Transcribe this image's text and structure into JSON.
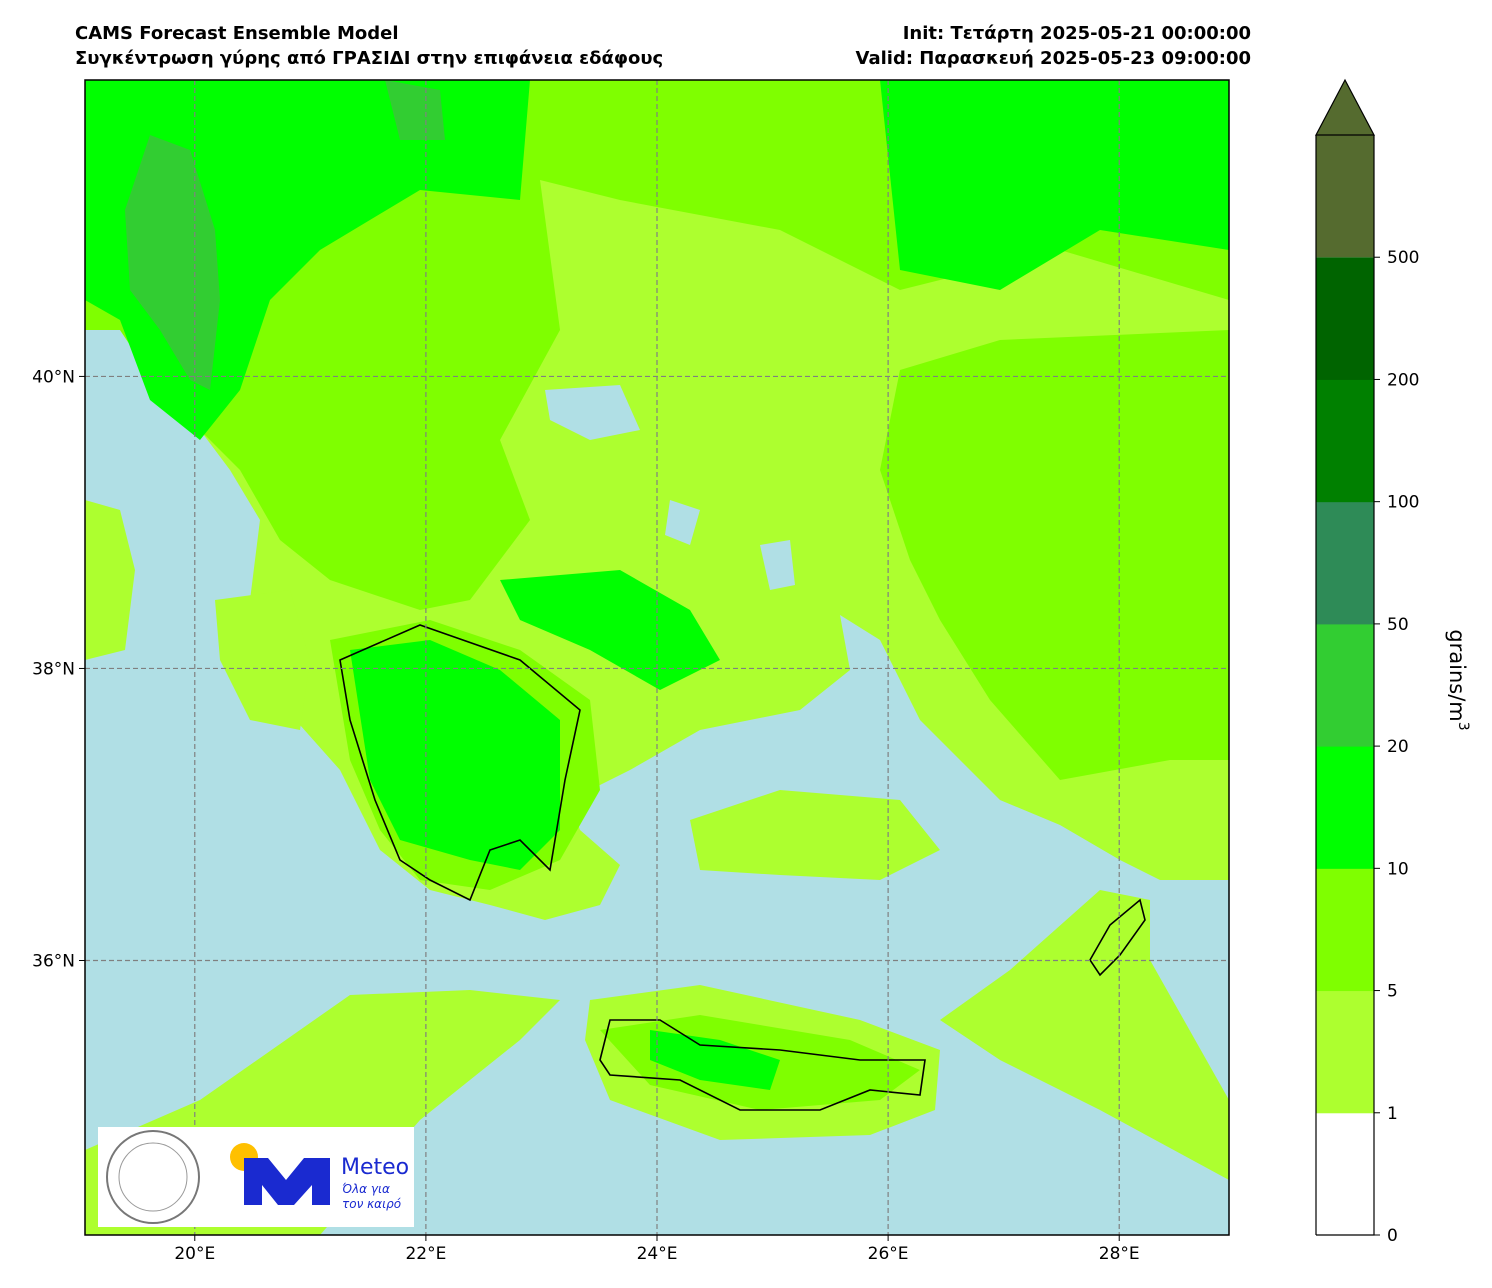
{
  "title": {
    "left": [
      "CAMS Forecast Ensemble Model",
      "Συγκέντρωση γύρης από ΓΡΑΣΙΔΙ στην επιφάνεια εδάφους"
    ],
    "right": [
      "Init: Τετάρτη 2025-05-21 00:00:00",
      "Valid: Παρασκευή 2025-05-23 09:00:00"
    ]
  },
  "map": {
    "xlim": [
      19.05,
      28.95
    ],
    "ylim": [
      34.12,
      42.03
    ],
    "xticks": [
      {
        "value": 20,
        "label": "20°E"
      },
      {
        "value": 22,
        "label": "22°E"
      },
      {
        "value": 24,
        "label": "24°E"
      },
      {
        "value": 26,
        "label": "26°E"
      },
      {
        "value": 28,
        "label": "28°E"
      }
    ],
    "yticks": [
      {
        "value": 36,
        "label": "36°N"
      },
      {
        "value": 38,
        "label": "38°N"
      },
      {
        "value": 40,
        "label": "40°N"
      }
    ]
  },
  "colorbar": {
    "label": "grains/m",
    "label_sup": "3",
    "levels": [
      0,
      1,
      5,
      10,
      20,
      50,
      100,
      200,
      500
    ],
    "colors": [
      "#ffffff",
      "#adff2f",
      "#7fff00",
      "#00ff00",
      "#32cd32",
      "#2e8b57",
      "#008000",
      "#006400",
      "#556b2f"
    ],
    "extend": "max"
  },
  "logo": {
    "name": "Meteo",
    "tagline": [
      "Όλα για",
      "τον καιρό"
    ]
  }
}
